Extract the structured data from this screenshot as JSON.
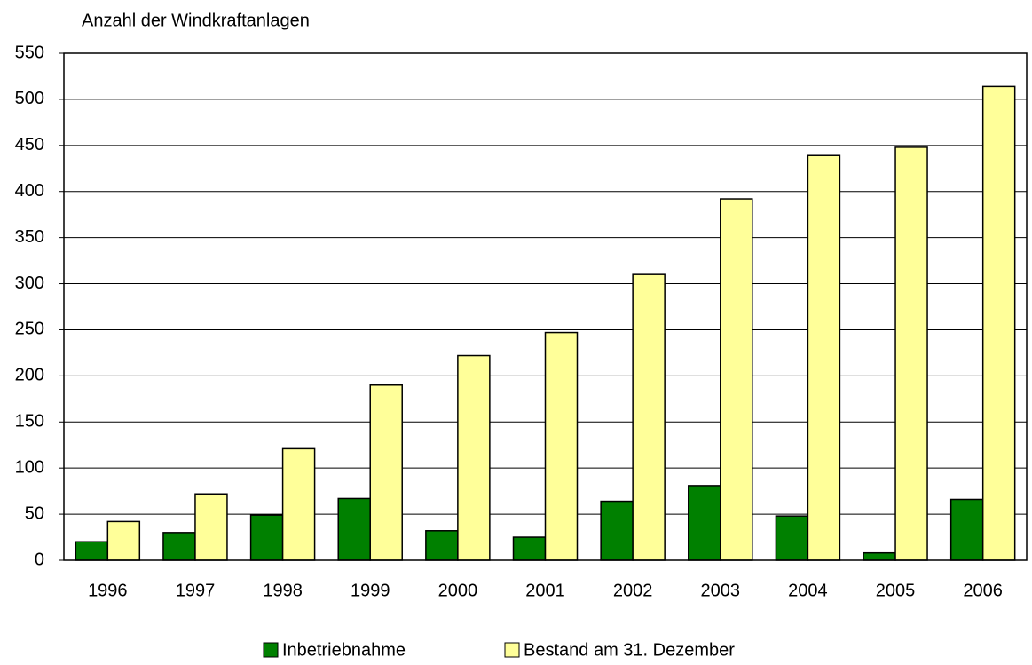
{
  "chart_data": {
    "type": "bar",
    "y_axis_label": "Anzahl der Windkraftanlagen",
    "categories": [
      "1996",
      "1997",
      "1998",
      "1999",
      "2000",
      "2001",
      "2002",
      "2003",
      "2004",
      "2005",
      "2006"
    ],
    "series": [
      {
        "name": "Inbetriebnahme",
        "color": "#008000",
        "values": [
          20,
          30,
          49,
          67,
          32,
          25,
          64,
          81,
          48,
          8,
          66
        ]
      },
      {
        "name": "Bestand am 31. Dezember",
        "color": "#ffff99",
        "values": [
          42,
          72,
          121,
          190,
          222,
          247,
          310,
          392,
          439,
          448,
          514
        ]
      }
    ],
    "ylim": [
      0,
      550
    ],
    "yticks": [
      0,
      50,
      100,
      150,
      200,
      250,
      300,
      350,
      400,
      450,
      500,
      550
    ],
    "grid": true,
    "legend": "bottom"
  }
}
